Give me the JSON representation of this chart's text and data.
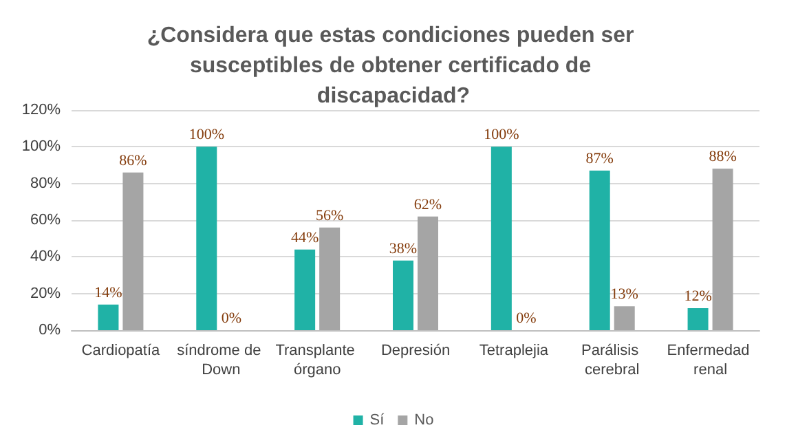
{
  "chart_data": {
    "type": "bar",
    "title": "¿Considera que estas condiciones pueden ser susceptibles de obtener certificado de discapacidad?",
    "categories": [
      "Cardiopatía",
      "síndrome de Down",
      "Transplante órgano",
      "Depresión",
      "Tetraplejia",
      "Parálisis cerebral",
      "Enfermedad renal"
    ],
    "series": [
      {
        "name": "Sí",
        "color": "#20b2a6",
        "values": [
          14,
          100,
          44,
          38,
          100,
          87,
          12
        ],
        "value_labels": [
          "14%",
          "100%",
          "44%",
          "38%",
          "100%",
          "87%",
          "12%"
        ]
      },
      {
        "name": "No",
        "color": "#a5a5a5",
        "values": [
          86,
          0,
          56,
          62,
          0,
          13,
          88
        ],
        "value_labels": [
          "86%",
          "0%",
          "56%",
          "62%",
          "0%",
          "13%",
          "88%"
        ]
      }
    ],
    "ylim": [
      0,
      120
    ],
    "yticks": [
      {
        "value": 0,
        "label": "0%"
      },
      {
        "value": 20,
        "label": "20%"
      },
      {
        "value": 40,
        "label": "40%"
      },
      {
        "value": 60,
        "label": "60%"
      },
      {
        "value": 80,
        "label": "80%"
      },
      {
        "value": 100,
        "label": "100%"
      },
      {
        "value": 120,
        "label": "120%"
      }
    ],
    "grid": "y",
    "legend": "bottom"
  }
}
